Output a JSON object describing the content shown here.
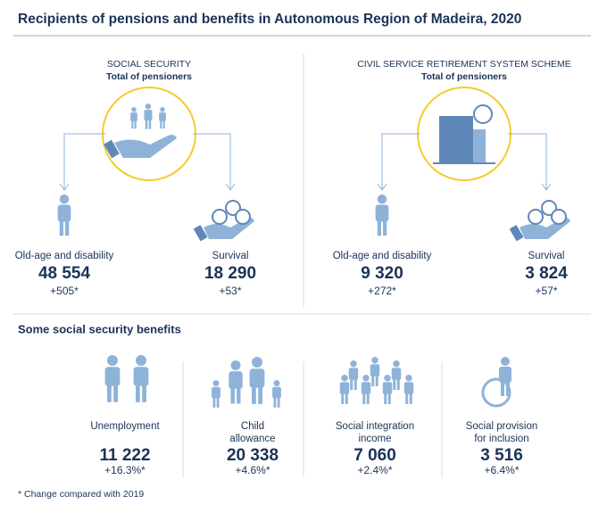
{
  "header": {
    "title": "Recipients of pensions and benefits in Autonomous Region of Madeira, 2020"
  },
  "pensions": [
    {
      "scheme": "SOCIAL SECURITY",
      "subtitle": "Total of pensioners",
      "groups": [
        {
          "label": "Old-age and disability",
          "value": "48 554",
          "change": "+505*"
        },
        {
          "label": "Survival",
          "value": "18 290",
          "change": "+53*"
        }
      ]
    },
    {
      "scheme": "CIVIL SERVICE RETIREMENT SYSTEM SCHEME",
      "subtitle": "Total of pensioners",
      "groups": [
        {
          "label": "Old-age and disability",
          "value": "9 320",
          "change": "+272*"
        },
        {
          "label": "Survival",
          "value": "3 824",
          "change": "+57*"
        }
      ]
    }
  ],
  "benefits": {
    "title": "Some social security benefits",
    "items": [
      {
        "label": [
          "Unemployment"
        ],
        "value": "11 222",
        "change": "+16.3%*"
      },
      {
        "label": [
          "Child",
          "allowance"
        ],
        "value": "20 338",
        "change": "+4.6%*"
      },
      {
        "label": [
          "Social integration",
          "income"
        ],
        "value": "7 060",
        "change": "+2.4%*"
      },
      {
        "label": [
          "Social provision",
          "for inclusion"
        ],
        "value": "3 516",
        "change": "+6.4%*"
      }
    ]
  },
  "footnote": "* Change compared with 2019"
}
